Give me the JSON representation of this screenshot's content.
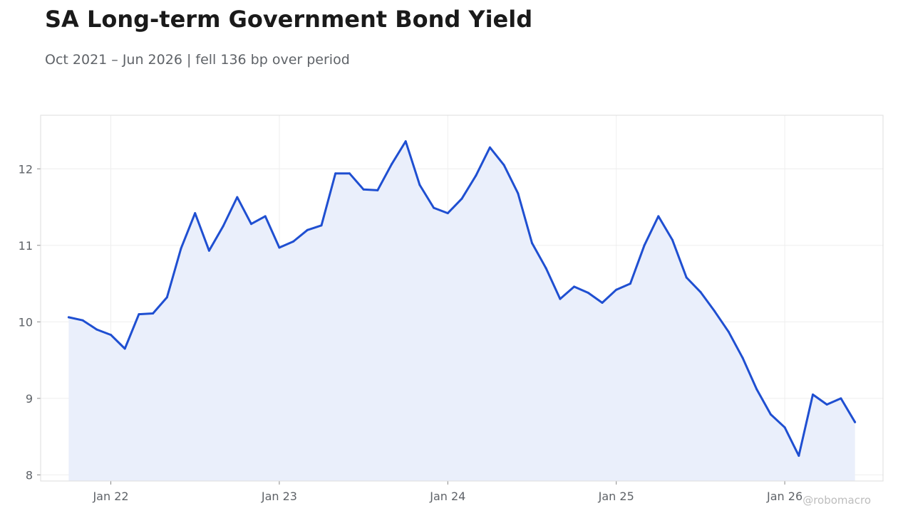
{
  "title": "SA Long-term Government Bond Yield",
  "subtitle": "Oct 2021 – Jun 2026 | fell 136 bp over period",
  "watermark": "@robomacro",
  "colors": {
    "line": "#1f4fd1",
    "fill": "#e9eefb",
    "grid": "#eeeeee",
    "frame": "#dddddd",
    "text": "#5f6368"
  },
  "chart_data": {
    "type": "area",
    "title": "SA Long-term Government Bond Yield",
    "xlabel": "",
    "ylabel": "",
    "grid": true,
    "legend": "none",
    "xlim": [
      "2021-08",
      "2026-08"
    ],
    "ylim": [
      7.92,
      12.7
    ],
    "x_ticks": [
      {
        "date": "2022-01",
        "label": "Jan 22"
      },
      {
        "date": "2023-01",
        "label": "Jan 23"
      },
      {
        "date": "2024-01",
        "label": "Jan 24"
      },
      {
        "date": "2025-01",
        "label": "Jan 25"
      },
      {
        "date": "2026-01",
        "label": "Jan 26"
      }
    ],
    "y_ticks": [
      8,
      9,
      10,
      11,
      12
    ],
    "series": [
      {
        "x": [
          "2021-10",
          "2021-11",
          "2021-12",
          "2022-01",
          "2022-02",
          "2022-03",
          "2022-04",
          "2022-05",
          "2022-06",
          "2022-07",
          "2022-08",
          "2022-09",
          "2022-10",
          "2022-11",
          "2022-12",
          "2023-01",
          "2023-02",
          "2023-03",
          "2023-04",
          "2023-05",
          "2023-06",
          "2023-07",
          "2023-08",
          "2023-09",
          "2023-10",
          "2023-11",
          "2023-12",
          "2024-01",
          "2024-02",
          "2024-03",
          "2024-04",
          "2024-05",
          "2024-06",
          "2024-07",
          "2024-08",
          "2024-09",
          "2024-10",
          "2024-11",
          "2024-12",
          "2025-01",
          "2025-02",
          "2025-03",
          "2025-04",
          "2025-05",
          "2025-06",
          "2025-07",
          "2025-08",
          "2025-09",
          "2025-10",
          "2025-11",
          "2025-12",
          "2026-01",
          "2026-02",
          "2026-03",
          "2026-04",
          "2026-05",
          "2026-06"
        ],
        "values": [
          10.06,
          10.02,
          9.9,
          9.83,
          9.65,
          10.1,
          10.11,
          10.32,
          10.96,
          11.42,
          10.93,
          11.25,
          11.63,
          11.28,
          11.38,
          10.97,
          11.05,
          11.2,
          11.26,
          11.94,
          11.94,
          11.73,
          11.72,
          12.06,
          12.36,
          11.79,
          11.49,
          11.42,
          11.61,
          11.91,
          12.28,
          12.05,
          11.68,
          11.03,
          10.7,
          10.3,
          10.46,
          10.38,
          10.25,
          10.42,
          10.5,
          11.0,
          11.38,
          11.07,
          10.58,
          10.39,
          10.14,
          9.87,
          9.53,
          9.12,
          8.79,
          8.62,
          8.25,
          9.05,
          8.92,
          9.0,
          8.69
        ]
      }
    ]
  }
}
